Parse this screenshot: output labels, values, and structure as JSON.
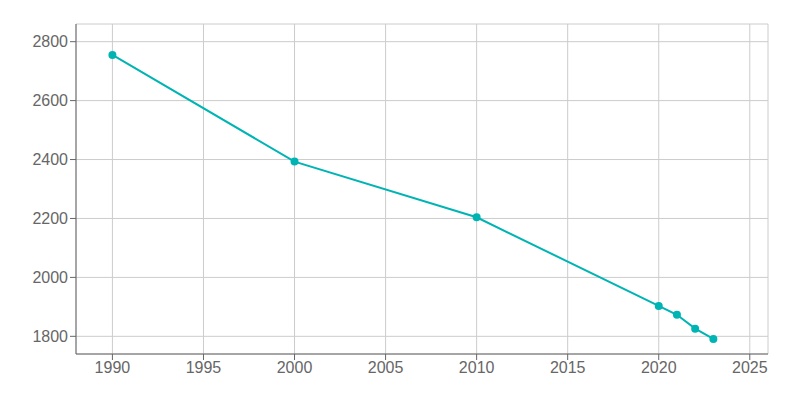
{
  "chart_data": {
    "type": "line",
    "x": [
      1990,
      2000,
      2010,
      2020,
      2021,
      2022,
      2023
    ],
    "values": [
      2755,
      2393,
      2204,
      1903,
      1873,
      1826,
      1791
    ],
    "color": "#00b4b4",
    "marker": "circle",
    "xlim": [
      1988,
      2026
    ],
    "xticks": [
      1990,
      1995,
      2000,
      2005,
      2010,
      2015,
      2020,
      2025
    ],
    "ylim": [
      1740,
      2860
    ],
    "yticks": [
      1800,
      2000,
      2200,
      2400,
      2600,
      2800
    ],
    "grid": true
  }
}
